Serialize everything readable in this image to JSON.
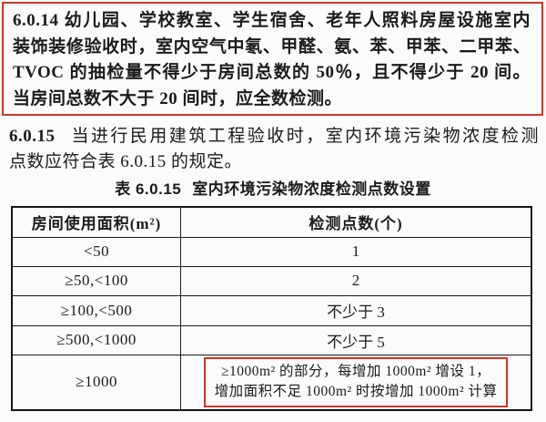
{
  "colors": {
    "highlight_red": "#c5392b",
    "table_border": "#1d1d1d",
    "background": "#fbfbf9"
  },
  "section_6_0_14": {
    "lines": [
      "6.0.14  幼儿园、学校教室、学生宿舍、老年人照料房屋设施室内",
      "装饰装修验收时，室内空气中氡、甲醛、氨、苯、甲苯、二甲苯、",
      "TVOC 的抽检量不得少于房间总数的 50％，且不得少于 20 间。",
      "当房间总数不大于 20 间时，应全数检测。"
    ]
  },
  "section_6_0_15": {
    "number": "6.0.15",
    "line1": "当进行民用建筑工程验收时，室内环境污染物浓度检测",
    "line2": "点数应符合表 6.0.15 的规定。"
  },
  "table_caption": {
    "label": "表 6.0.15",
    "title": "室内环境污染物浓度检测点数设置"
  },
  "table": {
    "headers": {
      "area": "房间使用面积(m²)",
      "points": "检测点数(个)"
    },
    "rows": [
      {
        "area": "<50",
        "points": "1"
      },
      {
        "area": "≥50,<100",
        "points": "2"
      },
      {
        "area": "≥100,<500",
        "points": "不少于 3"
      },
      {
        "area": "≥500,<1000",
        "points": "不少于 5"
      },
      {
        "area": "≥1000",
        "note_line1": "≥1000m² 的部分，每增加 1000m² 增设 1，",
        "note_line2": "增加面积不足 1000m² 时按增加 1000m² 计算"
      }
    ]
  }
}
